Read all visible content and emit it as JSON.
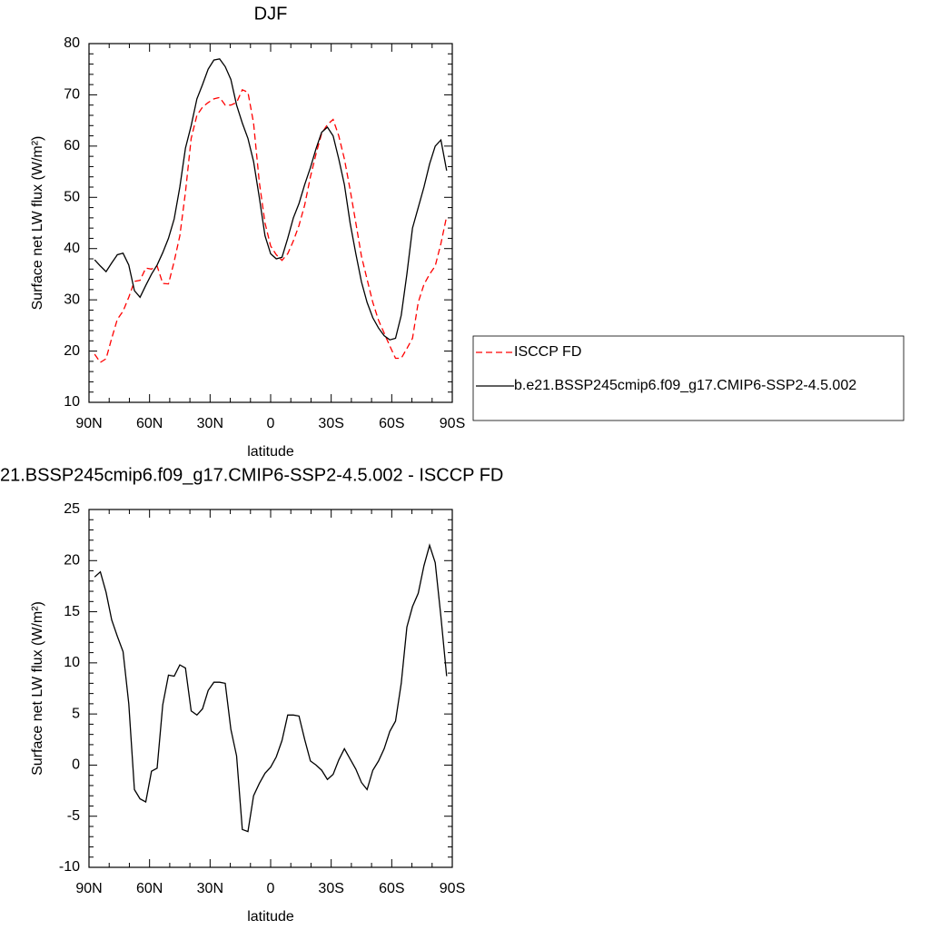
{
  "chart_data": [
    {
      "type": "line",
      "title": "DJF",
      "xlabel": "latitude",
      "ylabel": "Surface net LW flux (W/m²)",
      "x": [
        87.19,
        84.38,
        81.56,
        78.75,
        75.94,
        73.13,
        70.31,
        67.5,
        64.69,
        61.88,
        59.06,
        56.25,
        53.44,
        50.63,
        47.81,
        45,
        42.19,
        39.38,
        36.56,
        33.75,
        30.94,
        28.13,
        25.31,
        22.5,
        19.69,
        16.88,
        14.06,
        11.25,
        8.44,
        5.63,
        2.81,
        0,
        -2.81,
        -5.63,
        -8.44,
        -11.25,
        -14.06,
        -16.88,
        -19.69,
        -22.5,
        -25.31,
        -28.13,
        -30.94,
        -33.75,
        -36.56,
        -39.38,
        -42.19,
        -45,
        -47.81,
        -50.63,
        -53.44,
        -56.25,
        -59.06,
        -61.88,
        -64.69,
        -67.5,
        -70.31,
        -73.13,
        -75.94,
        -78.75,
        -81.56,
        -84.38,
        -87.19
      ],
      "xlim": [
        90,
        -90
      ],
      "xticks": [
        {
          "value": 90,
          "label": "90N"
        },
        {
          "value": 60,
          "label": "60N"
        },
        {
          "value": 30,
          "label": "30N"
        },
        0,
        {
          "value": -30,
          "label": "30S"
        },
        {
          "value": -60,
          "label": "60S"
        },
        {
          "value": -90,
          "label": "90S"
        }
      ],
      "ylim": [
        10,
        80
      ],
      "yticks": [
        10,
        20,
        30,
        40,
        50,
        60,
        70,
        80
      ],
      "legend": "right",
      "series": [
        {
          "name": "ISCCP FD",
          "color": "#ff0000",
          "style": "dashed",
          "values": [
            19.4,
            17.8,
            18.5,
            22.5,
            26.2,
            27.8,
            30.5,
            33.6,
            33.8,
            36.2,
            36,
            36.6,
            33.2,
            33.1,
            37.5,
            42.5,
            51,
            61.5,
            66,
            67.6,
            68.5,
            69.2,
            69.5,
            68,
            68,
            68.5,
            71,
            70.5,
            64.5,
            53,
            45,
            40.5,
            38.8,
            37.7,
            39,
            41.5,
            44.5,
            48.5,
            54,
            58.5,
            62.5,
            64.2,
            65.2,
            62,
            57.5,
            51.5,
            45,
            38.5,
            34,
            29.5,
            26,
            23.5,
            21,
            18.6,
            18.6,
            20.5,
            22.5,
            29.5,
            33,
            35,
            36.6,
            41,
            46.3
          ]
        },
        {
          "name": "b.e21.BSSP245cmip6.f09_g17.CMIP6-SSP2-4.5.002",
          "color": "#000000",
          "style": "solid",
          "values": [
            37.8,
            36.6,
            35.5,
            37.2,
            38.8,
            39.1,
            36.8,
            31.8,
            30.5,
            32.8,
            35,
            36.8,
            39.2,
            42,
            45.8,
            52,
            59.6,
            64,
            69.2,
            72,
            75,
            76.8,
            77,
            75.5,
            73,
            68,
            64.5,
            61.5,
            57,
            50,
            42.5,
            39,
            38,
            38.3,
            42,
            46,
            48.8,
            52.5,
            55.8,
            59.5,
            62.7,
            63.7,
            62,
            57.5,
            52.5,
            45,
            39,
            33.5,
            29.5,
            26.5,
            24.5,
            23,
            22.2,
            22.5,
            27,
            35,
            44,
            48,
            52,
            56.5,
            60,
            61.2,
            55.2
          ]
        }
      ]
    },
    {
      "type": "line",
      "title": "21.BSSP245cmip6.f09_g17.CMIP6-SSP2-4.5.002 - ISCCP FD",
      "xlabel": "latitude",
      "ylabel": "Surface net LW flux (W/m²)",
      "x": [
        87.19,
        84.38,
        81.56,
        78.75,
        75.94,
        73.13,
        70.31,
        67.5,
        64.69,
        61.88,
        59.06,
        56.25,
        53.44,
        50.63,
        47.81,
        45,
        42.19,
        39.38,
        36.56,
        33.75,
        30.94,
        28.13,
        25.31,
        22.5,
        19.69,
        16.88,
        14.06,
        11.25,
        8.44,
        5.63,
        2.81,
        0,
        -2.81,
        -5.63,
        -8.44,
        -11.25,
        -14.06,
        -16.88,
        -19.69,
        -22.5,
        -25.31,
        -28.13,
        -30.94,
        -33.75,
        -36.56,
        -39.38,
        -42.19,
        -45,
        -47.81,
        -50.63,
        -53.44,
        -56.25,
        -59.06,
        -61.88,
        -64.69,
        -67.5,
        -70.31,
        -73.13,
        -75.94,
        -78.75,
        -81.56,
        -84.38,
        -87.19
      ],
      "xlim": [
        90,
        -90
      ],
      "xticks": [
        {
          "value": 90,
          "label": "90N"
        },
        {
          "value": 60,
          "label": "60N"
        },
        {
          "value": 30,
          "label": "30N"
        },
        0,
        {
          "value": -30,
          "label": "30S"
        },
        {
          "value": -60,
          "label": "60S"
        },
        {
          "value": -90,
          "label": "90S"
        }
      ],
      "ylim": [
        -10,
        25
      ],
      "yticks": [
        -10,
        -5,
        0,
        5,
        10,
        15,
        20,
        25
      ],
      "series": [
        {
          "color": "#000000",
          "style": "solid",
          "values": [
            18.4,
            18.9,
            16.9,
            14.2,
            12.6,
            11.1,
            6,
            -2.4,
            -3.3,
            -3.6,
            -0.6,
            -0.3,
            5.9,
            8.8,
            8.7,
            9.8,
            9.5,
            5.3,
            4.9,
            5.5,
            7.3,
            8.1,
            8.1,
            8,
            3.5,
            0.9,
            -6.3,
            -6.5,
            -3,
            -1.8,
            -0.8,
            -0.2,
            0.8,
            2.4,
            4.9,
            4.9,
            4.8,
            2.5,
            0.4,
            0,
            -0.5,
            -1.4,
            -0.9,
            0.5,
            1.6,
            0.6,
            -0.4,
            -1.7,
            -2.4,
            -0.5,
            0.4,
            1.6,
            3.3,
            4.3,
            8,
            13.5,
            15.5,
            16.8,
            19.5,
            21.5,
            19.8,
            14.5,
            8.7
          ]
        }
      ]
    }
  ]
}
